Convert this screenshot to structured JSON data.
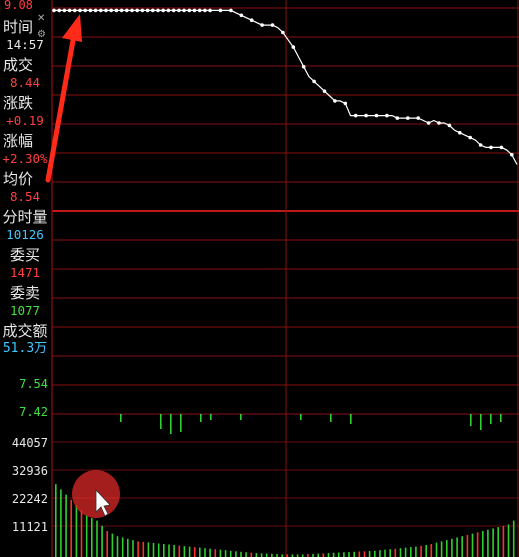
{
  "header": {
    "top_price": "9.08"
  },
  "info_panel": {
    "time_label": "时间",
    "time_value": "14:57",
    "deal_label": "成交",
    "deal_value": "8.44",
    "change_label": "涨跌",
    "change_value": "+0.19",
    "change_pct_label": "涨幅",
    "change_pct_value": "+2.30%",
    "avg_label": "均价",
    "avg_value": "8.54",
    "minute_volume_label": "分时量",
    "minute_volume_value": "10126",
    "bid_label": "委买",
    "bid_value": "1471",
    "ask_label": "委卖",
    "ask_value": "1077",
    "turnover_label": "成交额",
    "turnover_value": "51.3万"
  },
  "price_axis": [
    "7.54",
    "7.42"
  ],
  "volume_axis": [
    "44057",
    "32936",
    "22242",
    "11121"
  ],
  "colors": {
    "background": "#000000",
    "grid": "#8a1010",
    "price_line": "#ffffff",
    "up_bar": "#ff3030",
    "down_bar": "#30d030",
    "arrow": "#ff2a1a",
    "label": "#e8e8e8",
    "value_red": "#ff4040",
    "value_cyan": "#40c8ff",
    "value_green": "#40e040"
  },
  "icons": {
    "close": "close-icon",
    "settings": "gear-icon",
    "arrow": "up-arrow-annotation",
    "cursor": "mouse-cursor-icon"
  },
  "chart_data": {
    "type": "line",
    "price_series": [
      9.07,
      9.07,
      9.07,
      9.07,
      9.07,
      9.07,
      9.07,
      9.07,
      9.07,
      9.07,
      9.07,
      9.07,
      9.07,
      9.07,
      9.07,
      9.07,
      9.07,
      9.07,
      9.07,
      9.07,
      9.07,
      9.07,
      9.07,
      9.07,
      9.07,
      9.07,
      9.07,
      9.07,
      9.07,
      9.07,
      9.07,
      9.07,
      9.07,
      9.07,
      9.07,
      9.06,
      9.05,
      9.04,
      9.03,
      9.02,
      9.01,
      9.01,
      9.01,
      9.0,
      8.98,
      8.95,
      8.92,
      8.88,
      8.84,
      8.8,
      8.78,
      8.76,
      8.74,
      8.72,
      8.7,
      8.7,
      8.69,
      8.64,
      8.64,
      8.64,
      8.64,
      8.64,
      8.64,
      8.64,
      8.64,
      8.64,
      8.63,
      8.63,
      8.63,
      8.63,
      8.63,
      8.62,
      8.61,
      8.62,
      8.61,
      8.61,
      8.6,
      8.58,
      8.57,
      8.56,
      8.55,
      8.54,
      8.52,
      8.51,
      8.51,
      8.51,
      8.51,
      8.5,
      8.48,
      8.44
    ],
    "volume_up": [
      5,
      10,
      0,
      0,
      0,
      0,
      0,
      0,
      0,
      0,
      0,
      0,
      0,
      0,
      0,
      0,
      0,
      0,
      0,
      0,
      0,
      0,
      0,
      0,
      0,
      0,
      0,
      0,
      0,
      0,
      0,
      0,
      0,
      0,
      0,
      0,
      0,
      0,
      0,
      0,
      0,
      0,
      0,
      0,
      0,
      0,
      0,
      0,
      0,
      0,
      0,
      0,
      0,
      0,
      0,
      0,
      0,
      0,
      0,
      0,
      0,
      0,
      0,
      0,
      0,
      0,
      0,
      0,
      0,
      0,
      0,
      0,
      0,
      0,
      0,
      0,
      0,
      0,
      0,
      0,
      0,
      0,
      0,
      0,
      0,
      0,
      0,
      0,
      0,
      0
    ],
    "volume_down": [
      28000,
      26000,
      24000,
      22000,
      20000,
      18000,
      16000,
      15000,
      14000,
      12000,
      10000,
      9000,
      8000,
      7500,
      7000,
      6500,
      6000,
      5800,
      5600,
      5400,
      5200,
      5000,
      4800,
      4600,
      4400,
      4200,
      4000,
      3800,
      3600,
      3400,
      3200,
      3000,
      2800,
      2600,
      2400,
      2200,
      2000,
      1800,
      1600,
      1500,
      1400,
      1300,
      1200,
      1100,
      1000,
      1000,
      1000,
      1000,
      1000,
      1100,
      1200,
      1300,
      1400,
      1500,
      1600,
      1700,
      1800,
      1900,
      2000,
      2100,
      2200,
      2300,
      2400,
      2600,
      2800,
      3000,
      3200,
      3400,
      3600,
      3800,
      4000,
      4300,
      4600,
      5000,
      5500,
      6000,
      6500,
      7000,
      7500,
      8000,
      8500,
      9000,
      9500,
      10000,
      10500,
      11000,
      11500,
      12000,
      12500,
      14000
    ],
    "ylim_price": [
      7.42,
      9.08
    ],
    "ylim_volume": [
      0,
      55000
    ]
  }
}
